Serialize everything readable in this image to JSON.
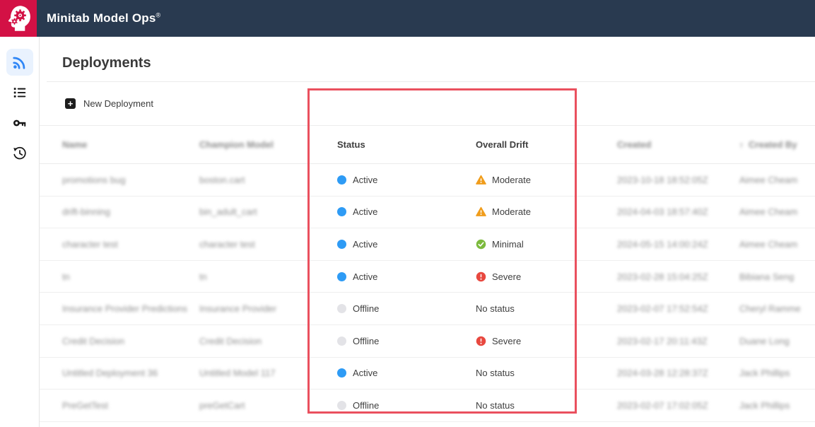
{
  "topbar": {
    "title": "Minitab Model Ops",
    "registered": "®"
  },
  "sidebar": {
    "items": [
      {
        "id": "deployments",
        "icon": "rss-feed-icon",
        "active": true
      },
      {
        "id": "list",
        "icon": "list-icon",
        "active": false
      },
      {
        "id": "keys",
        "icon": "key-icon",
        "active": false
      },
      {
        "id": "history",
        "icon": "history-icon",
        "active": false
      }
    ]
  },
  "page": {
    "title": "Deployments"
  },
  "toolbar": {
    "new_deployment": "New Deployment"
  },
  "table": {
    "headers": {
      "name": "Name",
      "champion_model": "Champion Model",
      "status": "Status",
      "overall_drift": "Overall Drift",
      "created": "Created",
      "created_by": "Created By",
      "sort_arrow": "↑"
    },
    "rows": [
      {
        "name": "promotions bug",
        "champion_model": "boston.cart",
        "status": "Active",
        "drift": "Moderate",
        "created": "2023-10-18 18:52:05Z",
        "created_by": "Aimee Cheam"
      },
      {
        "name": "drift-binning",
        "champion_model": "bin_adult_cart",
        "status": "Active",
        "drift": "Moderate",
        "created": "2024-04-03 18:57:40Z",
        "created_by": "Aimee Cheam"
      },
      {
        "name": "character test",
        "champion_model": "character test",
        "status": "Active",
        "drift": "Minimal",
        "created": "2024-05-15 14:00:24Z",
        "created_by": "Aimee Cheam"
      },
      {
        "name": "tn",
        "champion_model": "tn",
        "status": "Active",
        "drift": "Severe",
        "created": "2023-02-28 15:04:25Z",
        "created_by": "Bibiana Seng"
      },
      {
        "name": "Insurance Provider Predictions",
        "champion_model": "Insurance Provider",
        "status": "Offline",
        "drift": "No status",
        "created": "2023-02-07 17:52:54Z",
        "created_by": "Cheryl Ramme"
      },
      {
        "name": "Credit Decision",
        "champion_model": "Credit Decision",
        "status": "Offline",
        "drift": "Severe",
        "created": "2023-02-17 20:11:43Z",
        "created_by": "Duane Long"
      },
      {
        "name": "Untitled Deployment 36",
        "champion_model": "Untitled Model 117",
        "status": "Active",
        "drift": "No status",
        "created": "2024-03-28 12:28:37Z",
        "created_by": "Jack Phillips"
      },
      {
        "name": "PreGetTest",
        "champion_model": "preGetCart",
        "status": "Offline",
        "drift": "No status",
        "created": "2023-02-07 17:02:05Z",
        "created_by": "Jack Phillips"
      }
    ]
  },
  "colors": {
    "topbar_bg": "#293a50",
    "brand_red": "#d31145",
    "active_dot": "#2e9bf5",
    "offline_dot": "#e3e3e7",
    "moderate_orange": "#f09d1c",
    "minimal_green": "#7cba3d",
    "severe_red": "#e8483f",
    "sidebar_active_blue": "#2f86f6",
    "annotation_red": "#ea505e"
  }
}
